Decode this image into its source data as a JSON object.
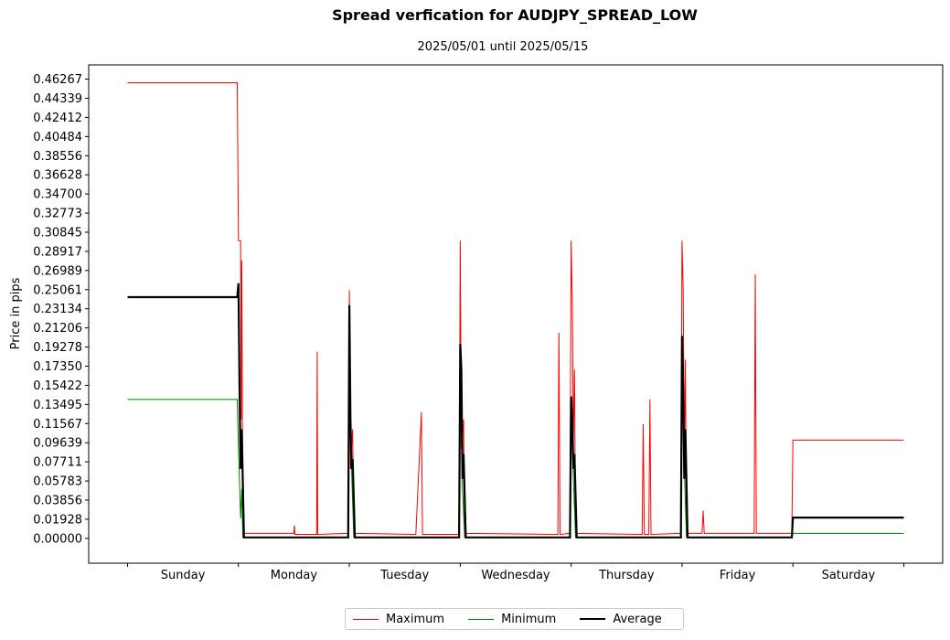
{
  "chart_data": {
    "type": "line",
    "title": "Spread verfication for AUDJPY_SPREAD_LOW",
    "subtitle": "2025/05/01 until 2025/05/15",
    "xlabel": "",
    "ylabel": "Price in pips",
    "categories": [
      "Sunday",
      "Monday",
      "Tuesday",
      "Wednesday",
      "Thursday",
      "Friday",
      "Saturday"
    ],
    "yticks": [
      "0.00000",
      "0.01928",
      "0.03856",
      "0.05783",
      "0.07711",
      "0.09639",
      "0.11567",
      "0.13495",
      "0.15422",
      "0.17350",
      "0.19278",
      "0.21206",
      "0.23134",
      "0.25061",
      "0.26989",
      "0.28917",
      "0.30845",
      "0.32773",
      "0.34700",
      "0.36628",
      "0.38556",
      "0.40484",
      "0.42412",
      "0.44339",
      "0.46267"
    ],
    "ylim": [
      -0.025,
      0.477
    ],
    "xlim": [
      -0.35,
      7.35
    ],
    "grid": false,
    "legend_position": "bottom-center",
    "series": [
      {
        "name": "Maximum",
        "color": "#ff0000",
        "points": [
          [
            0,
            0.459
          ],
          [
            0.99,
            0.459
          ],
          [
            1.0,
            0.3
          ],
          [
            1.02,
            0.3
          ],
          [
            1.025,
            0.12
          ],
          [
            1.03,
            0.28
          ],
          [
            1.04,
            0.005
          ],
          [
            1.5,
            0.005
          ],
          [
            1.505,
            0.013
          ],
          [
            1.51,
            0.004
          ],
          [
            1.705,
            0.004
          ],
          [
            1.71,
            0.188
          ],
          [
            1.715,
            0.004
          ],
          [
            1.99,
            0.005
          ],
          [
            2.0,
            0.25
          ],
          [
            2.01,
            0.07
          ],
          [
            2.03,
            0.11
          ],
          [
            2.04,
            0.005
          ],
          [
            2.6,
            0.004
          ],
          [
            2.65,
            0.127
          ],
          [
            2.66,
            0.004
          ],
          [
            2.99,
            0.004
          ],
          [
            3.0,
            0.3
          ],
          [
            3.01,
            0.09
          ],
          [
            3.03,
            0.12
          ],
          [
            3.04,
            0.005
          ],
          [
            3.88,
            0.004
          ],
          [
            3.89,
            0.207
          ],
          [
            3.9,
            0.004
          ],
          [
            3.99,
            0.005
          ],
          [
            4.0,
            0.3
          ],
          [
            4.01,
            0.24
          ],
          [
            4.02,
            0.1
          ],
          [
            4.03,
            0.17
          ],
          [
            4.04,
            0.005
          ],
          [
            4.64,
            0.004
          ],
          [
            4.65,
            0.115
          ],
          [
            4.66,
            0.004
          ],
          [
            4.7,
            0.004
          ],
          [
            4.71,
            0.14
          ],
          [
            4.72,
            0.004
          ],
          [
            4.99,
            0.005
          ],
          [
            5.0,
            0.3
          ],
          [
            5.01,
            0.25
          ],
          [
            5.02,
            0.08
          ],
          [
            5.03,
            0.18
          ],
          [
            5.04,
            0.005
          ],
          [
            5.18,
            0.005
          ],
          [
            5.19,
            0.028
          ],
          [
            5.2,
            0.005
          ],
          [
            5.65,
            0.005
          ],
          [
            5.66,
            0.266
          ],
          [
            5.67,
            0.005
          ],
          [
            5.99,
            0.005
          ],
          [
            6.0,
            0.099
          ],
          [
            7.0,
            0.099
          ]
        ]
      },
      {
        "name": "Minimum",
        "color": "#008000",
        "points": [
          [
            0,
            0.14
          ],
          [
            0.99,
            0.14
          ],
          [
            1.0,
            0.09
          ],
          [
            1.02,
            0.02
          ],
          [
            1.03,
            0.05
          ],
          [
            1.04,
            0.001
          ],
          [
            1.99,
            0.001
          ],
          [
            2.0,
            0.2
          ],
          [
            2.02,
            0.07
          ],
          [
            2.04,
            0.001
          ],
          [
            2.99,
            0.001
          ],
          [
            3.0,
            0.18
          ],
          [
            3.02,
            0.05
          ],
          [
            3.04,
            0.001
          ],
          [
            3.99,
            0.001
          ],
          [
            4.0,
            0.12
          ],
          [
            4.02,
            0.06
          ],
          [
            4.04,
            0.001
          ],
          [
            4.99,
            0.001
          ],
          [
            5.0,
            0.18
          ],
          [
            5.02,
            0.07
          ],
          [
            5.04,
            0.001
          ],
          [
            5.99,
            0.001
          ],
          [
            6.0,
            0.005
          ],
          [
            7.0,
            0.005
          ]
        ]
      },
      {
        "name": "Average",
        "color": "#000000",
        "points": [
          [
            0,
            0.243
          ],
          [
            0.99,
            0.243
          ],
          [
            1.0,
            0.257
          ],
          [
            1.01,
            0.15
          ],
          [
            1.02,
            0.07
          ],
          [
            1.03,
            0.11
          ],
          [
            1.05,
            0.001
          ],
          [
            1.99,
            0.001
          ],
          [
            2.0,
            0.235
          ],
          [
            2.01,
            0.12
          ],
          [
            2.02,
            0.07
          ],
          [
            2.03,
            0.08
          ],
          [
            2.05,
            0.001
          ],
          [
            2.99,
            0.001
          ],
          [
            3.0,
            0.196
          ],
          [
            3.01,
            0.17
          ],
          [
            3.02,
            0.06
          ],
          [
            3.03,
            0.085
          ],
          [
            3.05,
            0.001
          ],
          [
            3.99,
            0.001
          ],
          [
            4.0,
            0.143
          ],
          [
            4.01,
            0.12
          ],
          [
            4.02,
            0.07
          ],
          [
            4.03,
            0.085
          ],
          [
            4.05,
            0.001
          ],
          [
            4.99,
            0.001
          ],
          [
            5.0,
            0.204
          ],
          [
            5.01,
            0.15
          ],
          [
            5.02,
            0.06
          ],
          [
            5.03,
            0.11
          ],
          [
            5.05,
            0.001
          ],
          [
            5.99,
            0.001
          ],
          [
            6.0,
            0.021
          ],
          [
            7.0,
            0.021
          ]
        ]
      }
    ]
  }
}
